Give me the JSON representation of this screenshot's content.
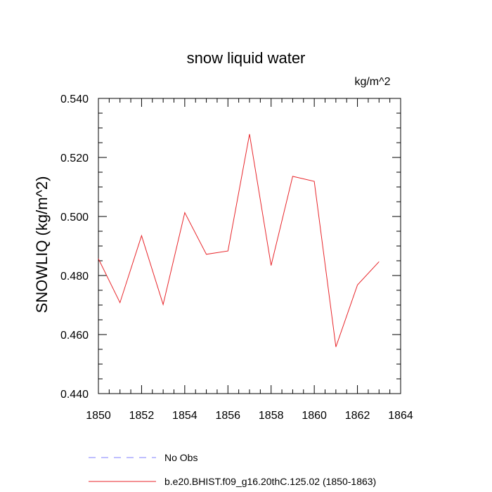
{
  "chart_data": {
    "type": "line",
    "title": "snow liquid water",
    "units": "kg/m^2",
    "xlabel": "",
    "ylabel": "SNOWLIQ  (kg/m^2)",
    "xlim": [
      1850,
      1864
    ],
    "ylim": [
      0.44,
      0.54
    ],
    "x_ticks": [
      "1850",
      "1852",
      "1854",
      "1856",
      "1858",
      "1860",
      "1862",
      "1864"
    ],
    "y_ticks": [
      "0.440",
      "0.460",
      "0.480",
      "0.500",
      "0.520",
      "0.540"
    ],
    "series": [
      {
        "name": "b.e20.BHIST.f09_g16.20thC.125.02 (1850-1863)",
        "color": "#e8262b",
        "style": "solid",
        "x": [
          1850,
          1851,
          1852,
          1853,
          1854,
          1855,
          1856,
          1857,
          1858,
          1859,
          1860,
          1861,
          1862,
          1863
        ],
        "values": [
          0.4857,
          0.4708,
          0.4935,
          0.4702,
          0.5013,
          0.4872,
          0.4883,
          0.5279,
          0.4834,
          0.5136,
          0.5119,
          0.4558,
          0.4768,
          0.4847
        ]
      }
    ],
    "legend": [
      {
        "label": "No Obs",
        "color": "#8080ff",
        "style": "dashed"
      },
      {
        "label": "b.e20.BHIST.f09_g16.20thC.125.02 (1850-1863)",
        "color": "#e8262b",
        "style": "solid"
      }
    ],
    "legend_position": "bottom",
    "grid": false
  }
}
